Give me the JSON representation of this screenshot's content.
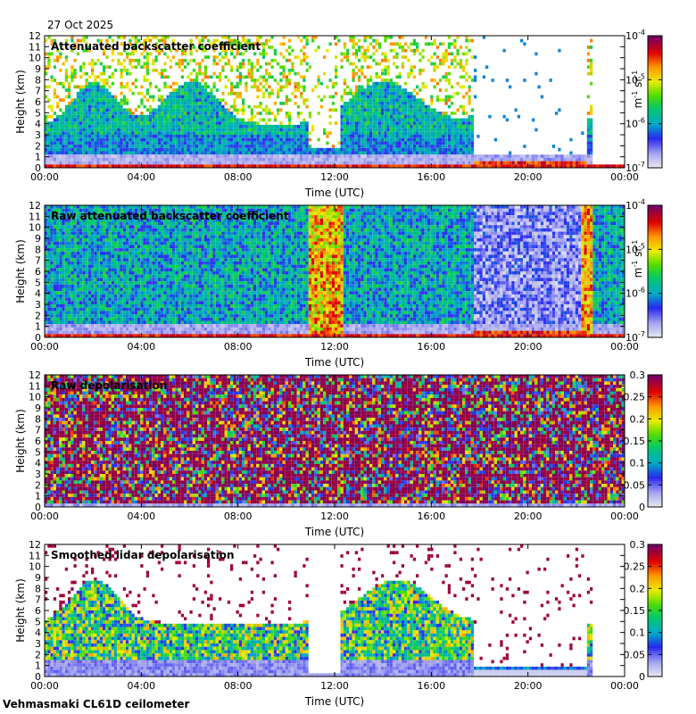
{
  "date": "27 Oct 2025",
  "footer": "Vehmasmaki CL61D ceilometer",
  "chart_data": [
    {
      "type": "heatmap",
      "title": "Attenuated backscatter coefficient",
      "xlabel": "Time (UTC)",
      "ylabel": "Height (km)",
      "x_ticks": [
        "00:00",
        "04:00",
        "08:00",
        "12:00",
        "16:00",
        "20:00",
        "00:00"
      ],
      "y_ticks": [
        "0",
        "1",
        "2",
        "3",
        "4",
        "5",
        "6",
        "7",
        "8",
        "9",
        "10",
        "11",
        "12"
      ],
      "ylim": [
        0,
        12
      ],
      "colorbar": {
        "scale": "log",
        "range": [
          1e-07,
          0.0001
        ],
        "ticks": [
          "10",
          "10",
          "10",
          "10"
        ],
        "exponents": [
          "-7",
          "-6",
          "-5",
          "-4"
        ],
        "unit_base": [
          "m",
          "sr"
        ],
        "unit_exp": [
          "-1",
          "-1"
        ]
      },
      "style": "att"
    },
    {
      "type": "heatmap",
      "title": "Raw attenuated backscatter coefficient",
      "xlabel": "Time (UTC)",
      "ylabel": "Height (km)",
      "x_ticks": [
        "00:00",
        "04:00",
        "08:00",
        "12:00",
        "16:00",
        "20:00",
        "00:00"
      ],
      "y_ticks": [
        "0",
        "1",
        "2",
        "3",
        "4",
        "5",
        "6",
        "7",
        "8",
        "9",
        "10",
        "11",
        "12"
      ],
      "ylim": [
        0,
        12
      ],
      "colorbar": {
        "scale": "log",
        "range": [
          1e-07,
          0.0001
        ],
        "ticks": [
          "10",
          "10",
          "10",
          "10"
        ],
        "exponents": [
          "-7",
          "-6",
          "-5",
          "-4"
        ],
        "unit_base": [
          "m",
          "sr"
        ],
        "unit_exp": [
          "-1",
          "-1"
        ]
      },
      "style": "raw"
    },
    {
      "type": "heatmap",
      "title": "Raw depolarisation",
      "xlabel": "Time (UTC)",
      "ylabel": "Height (km)",
      "x_ticks": [
        "00:00",
        "04:00",
        "08:00",
        "12:00",
        "16:00",
        "20:00",
        "00:00"
      ],
      "y_ticks": [
        "0",
        "1",
        "2",
        "3",
        "4",
        "5",
        "6",
        "7",
        "8",
        "9",
        "10",
        "11",
        "12"
      ],
      "ylim": [
        0,
        12
      ],
      "colorbar": {
        "scale": "linear",
        "range": [
          0,
          0.3
        ],
        "ticks": [
          "0",
          "0.05",
          "0.1",
          "0.15",
          "0.2",
          "0.25",
          "0.3"
        ]
      },
      "style": "rawdep"
    },
    {
      "type": "heatmap",
      "title": "Smoothed lidar depolarisation",
      "xlabel": "Time (UTC)",
      "ylabel": "Height (km)",
      "x_ticks": [
        "00:00",
        "04:00",
        "08:00",
        "12:00",
        "16:00",
        "20:00",
        "00:00"
      ],
      "y_ticks": [
        "0",
        "1",
        "2",
        "3",
        "4",
        "5",
        "6",
        "7",
        "8",
        "9",
        "10",
        "11",
        "12"
      ],
      "ylim": [
        0,
        12
      ],
      "colorbar": {
        "scale": "linear",
        "range": [
          0,
          0.3
        ],
        "ticks": [
          "0",
          "0.05",
          "0.1",
          "0.15",
          "0.2",
          "0.25",
          "0.3"
        ]
      },
      "style": "smdep"
    }
  ]
}
